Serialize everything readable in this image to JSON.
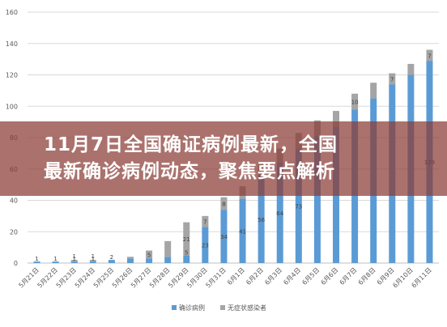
{
  "headline": {
    "line1": "11月7日全国确证病例最新，全国",
    "line2": "最新确诊病例动态，聚焦要点解析"
  },
  "chart_data": {
    "type": "bar",
    "stacked": true,
    "categories": [
      "5月21日",
      "5月22日",
      "5月23日",
      "5月24日",
      "5月25日",
      "5月26日",
      "5月27日",
      "5月28日",
      "5月29日",
      "5月30日",
      "5月31日",
      "6月1日",
      "6月2日",
      "6月3日",
      "6月4日",
      "6月5日",
      "6月6日",
      "6月7日",
      "6月8日",
      "6月9日",
      "6月10日",
      "6月11日"
    ],
    "series": [
      {
        "name": "确诊病例",
        "color": "#5b9bd5",
        "values": [
          1,
          1,
          1,
          1,
          2,
          3,
          3,
          4,
          5,
          23,
          34,
          41,
          56,
          64,
          73,
          81,
          87,
          98,
          105,
          114,
          120,
          129
        ],
        "labels": [
          "1",
          "1",
          "1",
          "1",
          "2",
          "",
          "",
          "",
          "5",
          "23",
          "34",
          "41",
          "56",
          "64",
          "73",
          "",
          "",
          "",
          "",
          "",
          "",
          "129"
        ]
      },
      {
        "name": "无症状感染者",
        "color": "#a5a5a5",
        "values": [
          0,
          0,
          1,
          1,
          0,
          1,
          5,
          10,
          21,
          7,
          8,
          8,
          8,
          9,
          10,
          10,
          10,
          10,
          10,
          7,
          7,
          7
        ],
        "labels": [
          "",
          "",
          "1",
          "1",
          "",
          "",
          "5",
          "",
          "21",
          "7",
          "8",
          "",
          "",
          "",
          "",
          "",
          "",
          "10",
          "",
          "7",
          "",
          "7"
        ]
      }
    ],
    "yticks": [
      "0",
      "20",
      "40",
      "60",
      "80",
      "100",
      "120",
      "140",
      "160"
    ],
    "ylim": [
      0,
      160
    ],
    "grid": true,
    "legend": "bottom"
  }
}
